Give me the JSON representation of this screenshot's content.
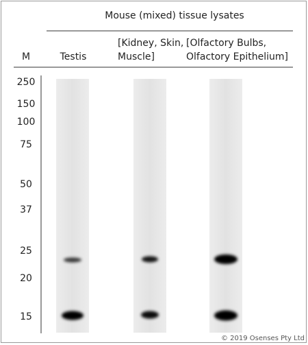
{
  "header": {
    "title": "Mouse (mixed) tissue lysates"
  },
  "marker_column": {
    "label": "M",
    "sizes": [
      "250",
      "150",
      "100",
      "75",
      "50",
      "37",
      "25",
      "20",
      "15"
    ]
  },
  "lanes": [
    {
      "label_lines": [
        "Testis"
      ]
    },
    {
      "label_lines": [
        "[Kidney, Skin,",
        "Muscle]"
      ]
    },
    {
      "label_lines": [
        "[Olfactory Bulbs,",
        "Olfactory Epithelium]"
      ]
    }
  ],
  "footer": {
    "copyright": "© 2019 Osenses Pty Ltd"
  }
}
